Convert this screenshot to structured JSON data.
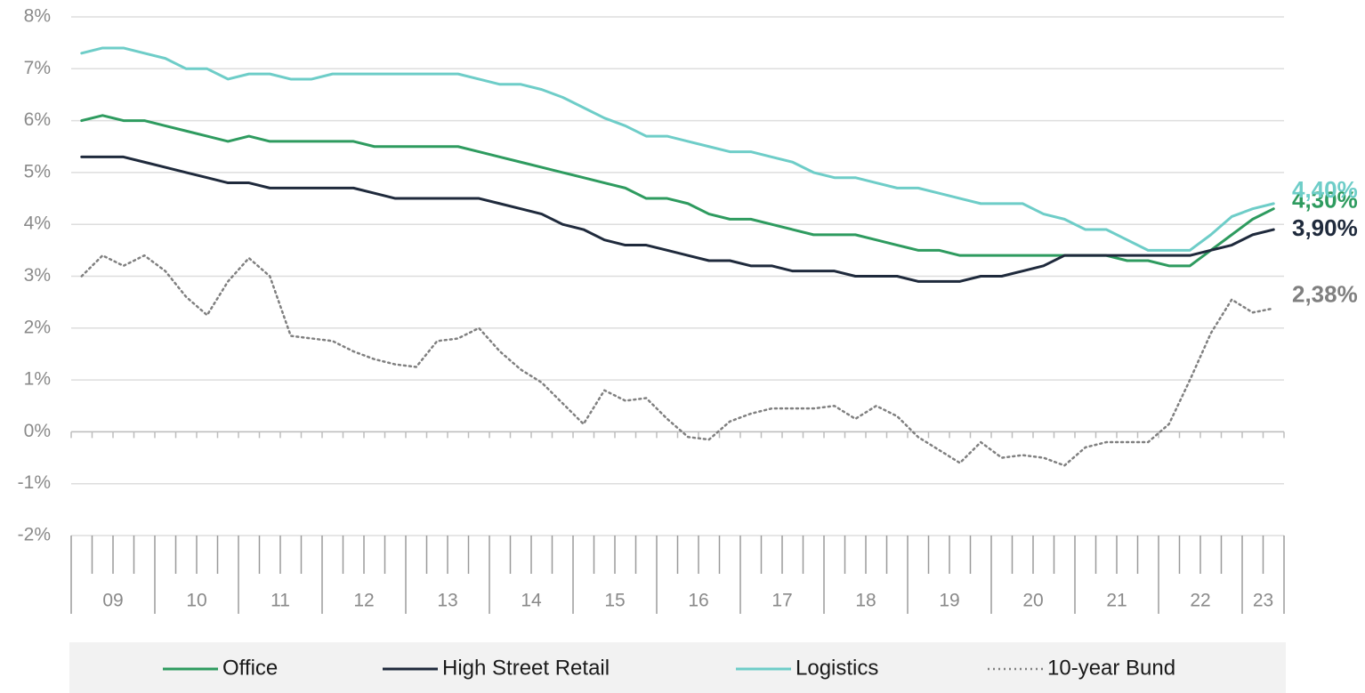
{
  "chart_data": {
    "type": "line",
    "year_labels": [
      "09",
      "10",
      "11",
      "12",
      "13",
      "14",
      "15",
      "16",
      "17",
      "18",
      "19",
      "20",
      "21",
      "22",
      "23"
    ],
    "ylim": [
      -2,
      8
    ],
    "yticks": [
      {
        "value": -2,
        "label": "-2%"
      },
      {
        "value": -1,
        "label": "-1%"
      },
      {
        "value": 0,
        "label": "0%"
      },
      {
        "value": 1,
        "label": "1%"
      },
      {
        "value": 2,
        "label": "2%"
      },
      {
        "value": 3,
        "label": "3%"
      },
      {
        "value": 4,
        "label": "4%"
      },
      {
        "value": 5,
        "label": "5%"
      },
      {
        "value": 6,
        "label": "6%"
      },
      {
        "value": 7,
        "label": "7%"
      },
      {
        "value": 8,
        "label": "8%"
      }
    ],
    "grid": true,
    "series": [
      {
        "name": "Office",
        "color": "#2e9b5f",
        "style": "solid",
        "end_label": "4,30%",
        "values": [
          6.0,
          6.1,
          6.0,
          6.0,
          5.9,
          5.8,
          5.7,
          5.6,
          5.7,
          5.6,
          5.6,
          5.6,
          5.6,
          5.6,
          5.5,
          5.5,
          5.5,
          5.5,
          5.5,
          5.4,
          5.3,
          5.2,
          5.1,
          5.0,
          4.9,
          4.8,
          4.7,
          4.5,
          4.5,
          4.4,
          4.2,
          4.1,
          4.1,
          4.0,
          3.9,
          3.8,
          3.8,
          3.8,
          3.7,
          3.6,
          3.5,
          3.5,
          3.4,
          3.4,
          3.4,
          3.4,
          3.4,
          3.4,
          3.4,
          3.4,
          3.3,
          3.3,
          3.2,
          3.2,
          3.5,
          3.8,
          4.1,
          4.3
        ]
      },
      {
        "name": "High Street Retail",
        "color": "#1f2a3c",
        "style": "solid",
        "end_label": "3,90%",
        "values": [
          5.3,
          5.3,
          5.3,
          5.2,
          5.1,
          5.0,
          4.9,
          4.8,
          4.8,
          4.7,
          4.7,
          4.7,
          4.7,
          4.7,
          4.6,
          4.5,
          4.5,
          4.5,
          4.5,
          4.5,
          4.4,
          4.3,
          4.2,
          4.0,
          3.9,
          3.7,
          3.6,
          3.6,
          3.5,
          3.4,
          3.3,
          3.3,
          3.2,
          3.2,
          3.1,
          3.1,
          3.1,
          3.0,
          3.0,
          3.0,
          2.9,
          2.9,
          2.9,
          3.0,
          3.0,
          3.1,
          3.2,
          3.4,
          3.4,
          3.4,
          3.4,
          3.4,
          3.4,
          3.4,
          3.5,
          3.6,
          3.8,
          3.9
        ]
      },
      {
        "name": "Logistics",
        "color": "#6ecdc8",
        "style": "solid",
        "end_label": "4,40%",
        "values": [
          7.3,
          7.4,
          7.4,
          7.3,
          7.2,
          7.0,
          7.0,
          6.8,
          6.9,
          6.9,
          6.8,
          6.8,
          6.9,
          6.9,
          6.9,
          6.9,
          6.9,
          6.9,
          6.9,
          6.8,
          6.7,
          6.7,
          6.6,
          6.45,
          6.25,
          6.05,
          5.9,
          5.7,
          5.7,
          5.6,
          5.5,
          5.4,
          5.4,
          5.3,
          5.2,
          5.0,
          4.9,
          4.9,
          4.8,
          4.7,
          4.7,
          4.6,
          4.5,
          4.4,
          4.4,
          4.4,
          4.2,
          4.1,
          3.9,
          3.9,
          3.7,
          3.5,
          3.5,
          3.5,
          3.8,
          4.15,
          4.3,
          4.4
        ]
      },
      {
        "name": "10-year Bund",
        "color": "#808080",
        "style": "dotted",
        "end_label": "2,38%",
        "values": [
          3.0,
          3.4,
          3.2,
          3.4,
          3.1,
          2.6,
          2.25,
          2.9,
          3.35,
          3.0,
          1.85,
          1.8,
          1.75,
          1.55,
          1.4,
          1.3,
          1.25,
          1.75,
          1.8,
          2.0,
          1.55,
          1.2,
          0.95,
          0.55,
          0.15,
          0.8,
          0.6,
          0.65,
          0.25,
          -0.1,
          -0.15,
          0.2,
          0.35,
          0.45,
          0.45,
          0.45,
          0.5,
          0.25,
          0.5,
          0.3,
          -0.1,
          -0.35,
          -0.6,
          -0.2,
          -0.5,
          -0.45,
          -0.5,
          -0.65,
          -0.3,
          -0.2,
          -0.2,
          -0.2,
          0.15,
          1.0,
          1.9,
          2.55,
          2.3,
          2.38
        ]
      }
    ]
  }
}
